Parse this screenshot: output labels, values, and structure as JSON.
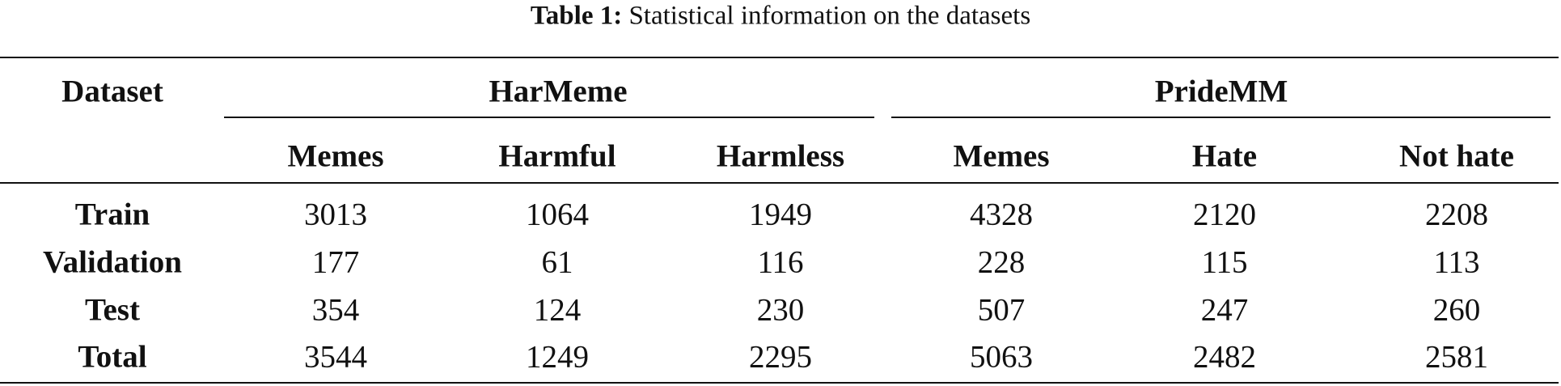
{
  "caption": {
    "label": "Table 1:",
    "text": "Statistical information on the datasets"
  },
  "table": {
    "row_header": "Dataset",
    "groups": [
      {
        "name": "HarMeme",
        "columns": [
          "Memes",
          "Harmful",
          "Harmless"
        ]
      },
      {
        "name": "PrideMM",
        "columns": [
          "Memes",
          "Hate",
          "Not hate"
        ]
      }
    ],
    "rows": [
      {
        "label": "Train",
        "values": [
          3013,
          1064,
          1949,
          4328,
          2120,
          2208
        ]
      },
      {
        "label": "Validation",
        "values": [
          177,
          61,
          116,
          228,
          115,
          113
        ]
      },
      {
        "label": "Test",
        "values": [
          354,
          124,
          230,
          507,
          247,
          260
        ]
      },
      {
        "label": "Total",
        "values": [
          3544,
          1249,
          2295,
          5063,
          2482,
          2581
        ]
      }
    ]
  }
}
